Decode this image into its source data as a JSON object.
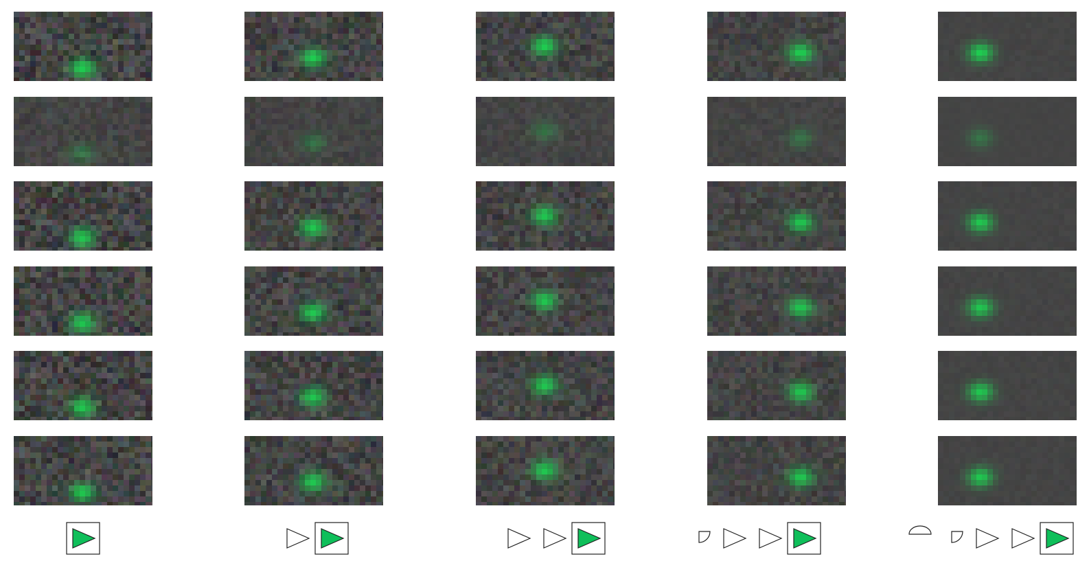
{
  "grid": {
    "columns": 5,
    "rows": 6
  },
  "colors": {
    "background": "#ffffff",
    "tile": "#444444",
    "blob": "#1fd15b",
    "outline": "#222222",
    "highlight_fill": "#0fbf5a"
  },
  "sequences": [
    {
      "shapes": [
        "triangle-icon-selected"
      ]
    },
    {
      "shapes": [
        "triangle-icon",
        "triangle-icon-selected"
      ]
    },
    {
      "shapes": [
        "triangle-icon",
        "triangle-icon",
        "triangle-icon-selected"
      ]
    },
    {
      "shapes": [
        "quarter-shape-icon",
        "triangle-icon",
        "triangle-icon",
        "triangle-icon-selected"
      ]
    },
    {
      "shapes": [
        "semicircle-icon",
        "quarter-shape-icon",
        "triangle-icon",
        "triangle-icon",
        "triangle-icon-selected"
      ]
    }
  ]
}
